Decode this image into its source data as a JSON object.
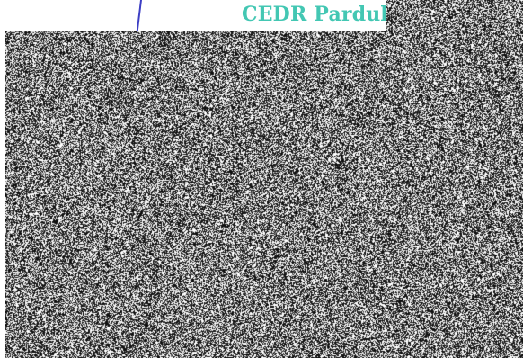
{
  "scene": {
    "text": "CEDR Pardub",
    "accent_text_color": "#43c7b3",
    "line_color": "#3d3fc4",
    "noise_colors": {
      "dark": "#111111",
      "light": "#ffffff",
      "mid": "#7b7b7b"
    }
  }
}
